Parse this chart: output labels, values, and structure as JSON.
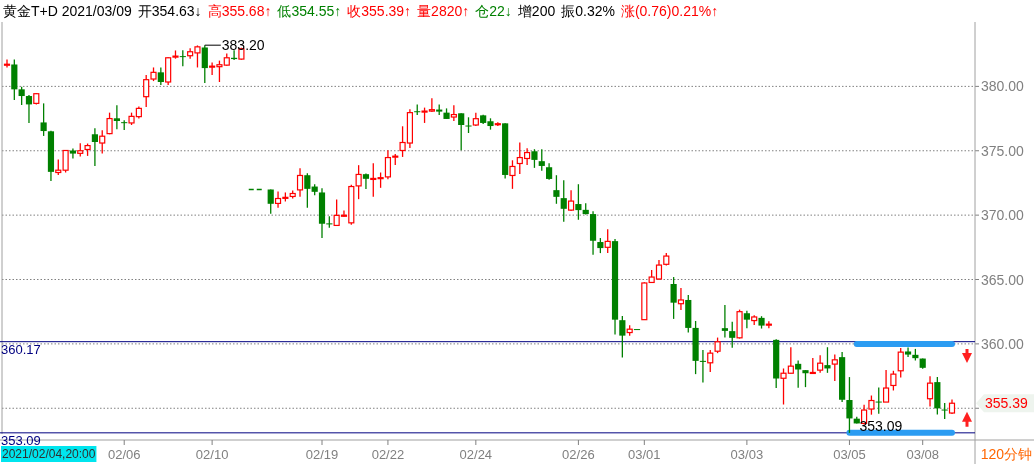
{
  "chart_data": {
    "type": "candlestick",
    "title": "黄金T+D 2021/03/09",
    "categories": [
      null,
      null,
      null,
      null,
      null,
      null,
      null,
      null,
      null,
      null,
      null,
      null,
      null,
      null,
      null,
      null,
      "02/06",
      null,
      null,
      null,
      null,
      null,
      null,
      null,
      null,
      null,
      null,
      null,
      "02/10",
      null,
      null,
      null,
      null,
      null,
      null,
      null,
      null,
      null,
      null,
      null,
      null,
      null,
      null,
      "02/19",
      null,
      null,
      null,
      null,
      null,
      null,
      null,
      null,
      "02/22",
      null,
      null,
      null,
      null,
      null,
      null,
      null,
      null,
      null,
      null,
      null,
      "02/24",
      null,
      null,
      null,
      null,
      null,
      null,
      null,
      null,
      null,
      null,
      null,
      null,
      null,
      "02/26",
      null,
      null,
      null,
      null,
      null,
      null,
      null,
      null,
      "03/01",
      null,
      null,
      null,
      null,
      null,
      null,
      null,
      null,
      null,
      null,
      null,
      null,
      null,
      "03/03",
      null,
      null,
      null,
      null,
      null,
      null,
      null,
      null,
      null,
      null,
      null,
      null,
      null,
      "03/05",
      null,
      null,
      null,
      null,
      null,
      null,
      null,
      null,
      null,
      "03/08",
      null,
      null,
      null,
      null
    ],
    "ohlc": [
      [
        381.7,
        382.09,
        381.47,
        381.72
      ],
      [
        381.7,
        382.09,
        378.94,
        379.77
      ],
      [
        379.77,
        379.98,
        378.55,
        379.25
      ],
      [
        379.25,
        379.33,
        377.16,
        378.6
      ],
      [
        378.68,
        379.48,
        378.6,
        379.43
      ],
      [
        377.2,
        378.68,
        376.15,
        376.53
      ],
      [
        376.51,
        376.56,
        372.66,
        373.36
      ],
      [
        373.31,
        374.32,
        373.12,
        373.49
      ],
      [
        373.49,
        375.02,
        373.31,
        375.02
      ],
      [
        375.02,
        375.17,
        374.4,
        374.78
      ],
      [
        374.8,
        375.58,
        374.55,
        375.0
      ],
      [
        375.1,
        375.56,
        374.6,
        375.4
      ],
      [
        376.28,
        376.74,
        373.82,
        375.68
      ],
      [
        375.6,
        376.59,
        374.78,
        376.13
      ],
      [
        376.33,
        377.96,
        376.28,
        377.5
      ],
      [
        377.52,
        378.53,
        376.67,
        377.31
      ],
      [
        377.22,
        377.36,
        376.62,
        377.2
      ],
      [
        377.16,
        377.96,
        377.0,
        377.67
      ],
      [
        377.65,
        378.43,
        377.5,
        378.29
      ],
      [
        379.2,
        380.88,
        378.4,
        380.52
      ],
      [
        380.57,
        381.47,
        380.41,
        381.09
      ],
      [
        381.09,
        381.47,
        380.1,
        380.34
      ],
      [
        380.34,
        382.27,
        380.1,
        382.22
      ],
      [
        382.3,
        382.79,
        382.15,
        382.35
      ],
      [
        382.35,
        382.81,
        381.57,
        382.3
      ],
      [
        382.38,
        382.97,
        382.15,
        382.69
      ],
      [
        382.6,
        383.18,
        381.47,
        383.07
      ],
      [
        383.02,
        383.2,
        380.26,
        381.42
      ],
      [
        381.55,
        381.86,
        380.88,
        381.57
      ],
      [
        381.53,
        382.0,
        380.34,
        381.68
      ],
      [
        381.65,
        382.56,
        381.6,
        382.22
      ],
      [
        382.22,
        382.81,
        382.04,
        382.12
      ],
      [
        382.12,
        383.0,
        382.07,
        382.92
      ],
      null,
      null,
      null,
      [
        371.99,
        371.99,
        370.1,
        370.88
      ],
      [
        370.91,
        371.84,
        370.57,
        371.29
      ],
      [
        371.36,
        371.76,
        371.06,
        371.38
      ],
      [
        371.45,
        371.91,
        371.29,
        371.68
      ],
      [
        371.96,
        373.64,
        371.42,
        373.08
      ],
      [
        373.1,
        373.26,
        370.57,
        372.04
      ],
      [
        372.22,
        372.4,
        371.55,
        371.81
      ],
      [
        371.76,
        372.09,
        368.22,
        369.33
      ],
      [
        369.36,
        369.92,
        369.02,
        369.28
      ],
      [
        369.2,
        371.22,
        369.2,
        369.98
      ],
      [
        369.97,
        370.36,
        369.87,
        369.99
      ],
      [
        369.4,
        372.35,
        369.25,
        372.22
      ],
      [
        372.27,
        373.88,
        371.24,
        373.16
      ],
      [
        373.18,
        373.24,
        372.02,
        372.82
      ],
      [
        372.83,
        374.03,
        371.42,
        372.85
      ],
      [
        372.89,
        373.31,
        372.12,
        372.91
      ],
      [
        372.97,
        375.04,
        372.79,
        374.47
      ],
      [
        374.56,
        374.75,
        373.9,
        374.58
      ],
      [
        375.02,
        376.9,
        374.52,
        375.64
      ],
      [
        375.6,
        378.22,
        375.22,
        377.96
      ],
      [
        378.07,
        378.6,
        377.78,
        378.05
      ],
      [
        378.05,
        378.35,
        377.16,
        378.08
      ],
      [
        378.08,
        379.07,
        378.01,
        378.19
      ],
      [
        378.2,
        378.6,
        377.78,
        378.04
      ],
      [
        377.96,
        378.29,
        377.47,
        377.47
      ],
      [
        377.62,
        378.53,
        377.31,
        377.81
      ],
      [
        377.91,
        377.91,
        375.04,
        377.0
      ],
      [
        376.96,
        377.6,
        376.38,
        376.94
      ],
      [
        377.0,
        377.96,
        376.93,
        377.49
      ],
      [
        377.75,
        377.8,
        377.08,
        377.16
      ],
      [
        377.29,
        377.52,
        376.64,
        376.92
      ],
      [
        377.06,
        377.21,
        376.92,
        377.1
      ],
      [
        377.13,
        377.13,
        372.84,
        373.12
      ],
      [
        373.08,
        374.26,
        372.04,
        373.78
      ],
      [
        374.01,
        375.64,
        373.2,
        374.47
      ],
      [
        374.4,
        375.19,
        373.9,
        374.86
      ],
      [
        374.96,
        375.12,
        373.67,
        374.29
      ],
      [
        374.19,
        375.12,
        373.44,
        373.82
      ],
      [
        373.72,
        374.03,
        372.74,
        372.81
      ],
      [
        371.94,
        373.1,
        370.88,
        371.42
      ],
      [
        371.32,
        372.71,
        369.48,
        370.49
      ],
      [
        370.39,
        371.94,
        370.33,
        371.09
      ],
      [
        370.86,
        372.4,
        369.64,
        370.39
      ],
      [
        370.41,
        370.93,
        370.05,
        370.08
      ],
      [
        370.08,
        370.31,
        366.92,
        368.01
      ],
      [
        367.91,
        368.22,
        367.05,
        367.44
      ],
      [
        367.5,
        368.91,
        367.05,
        367.96
      ],
      [
        367.98,
        368.14,
        360.72,
        361.88
      ],
      [
        361.84,
        362.17,
        358.94,
        360.64
      ],
      [
        360.88,
        361.45,
        360.64,
        361.14
      ],
      [
        361.15,
        361.15,
        361.13,
        361.13
      ],
      [
        361.88,
        364.78,
        361.88,
        364.73
      ],
      [
        364.77,
        365.74,
        364.73,
        365.19
      ],
      [
        365.04,
        366.51,
        364.97,
        366.12
      ],
      [
        366.18,
        367.05,
        366.08,
        366.82
      ],
      [
        364.65,
        365.19,
        361.94,
        363.2
      ],
      [
        363.12,
        364.34,
        362.63,
        363.41
      ],
      [
        363.41,
        363.8,
        360.88,
        361.24
      ],
      [
        361.24,
        361.78,
        357.65,
        358.68
      ],
      [
        358.68,
        359.53,
        357.0,
        358.6
      ],
      [
        358.53,
        359.53,
        357.81,
        359.28
      ],
      [
        359.43,
        360.49,
        359.28,
        360.16
      ],
      [
        361.22,
        363.02,
        360.5,
        361.01
      ],
      [
        360.99,
        361.71,
        359.69,
        360.47
      ],
      [
        360.47,
        362.66,
        360.41,
        362.5
      ],
      [
        362.38,
        362.58,
        361.22,
        361.88
      ],
      [
        361.81,
        362.22,
        361.47,
        362.09
      ],
      [
        362.02,
        362.15,
        361.19,
        361.42
      ],
      [
        361.5,
        361.76,
        361.22,
        361.53
      ],
      [
        360.31,
        360.36,
        356.57,
        357.31
      ],
      [
        357.33,
        358.09,
        355.29,
        357.72
      ],
      [
        357.72,
        359.74,
        357.72,
        358.27
      ],
      [
        358.45,
        358.71,
        356.59,
        358.01
      ],
      [
        357.96,
        357.96,
        356.64,
        357.72
      ],
      [
        357.75,
        358.91,
        357.72,
        357.78
      ],
      [
        357.96,
        359.12,
        357.75,
        358.5
      ],
      [
        358.35,
        359.74,
        357.75,
        358.09
      ],
      [
        358.43,
        359.17,
        357.11,
        358.76
      ],
      [
        358.97,
        359.36,
        355.48,
        355.66
      ],
      [
        355.64,
        357.42,
        353.09,
        354.21
      ],
      [
        354.19,
        354.34,
        353.82,
        353.82
      ],
      [
        353.82,
        355.27,
        353.74,
        354.86
      ],
      [
        354.94,
        355.99,
        354.5,
        355.6
      ],
      [
        355.52,
        356.61,
        354.57,
        355.45
      ],
      [
        355.48,
        357.98,
        355.48,
        356.57
      ],
      [
        356.77,
        357.91,
        356.38,
        357.65
      ],
      [
        357.91,
        359.67,
        357.39,
        359.36
      ],
      [
        359.41,
        359.72,
        358.99,
        359.17
      ],
      [
        359.15,
        359.61,
        358.71,
        358.89
      ],
      [
        358.86,
        358.86,
        358.06,
        358.14
      ],
      [
        355.74,
        357.49,
        355.14,
        356.95
      ],
      [
        357.03,
        357.42,
        354.52,
        354.99
      ],
      [
        354.9,
        355.4,
        354.16,
        354.83
      ],
      [
        354.63,
        355.68,
        354.55,
        355.39
      ]
    ],
    "series": [
      {
        "type": "line",
        "color": "#008000",
        "line_style": "dashed",
        "values": [
          null,
          null,
          null,
          null,
          null,
          null,
          null,
          null,
          null,
          null,
          null,
          null,
          null,
          null,
          null,
          null,
          null,
          null,
          null,
          null,
          null,
          null,
          null,
          null,
          null,
          null,
          null,
          null,
          null,
          null,
          null,
          null,
          null,
          372.0,
          372.0,
          372.0,
          null,
          null,
          null,
          null,
          null,
          null,
          null,
          null,
          null,
          null,
          null,
          null,
          null,
          null,
          null,
          null,
          null,
          null,
          null,
          null,
          null,
          null,
          null,
          null,
          null,
          null,
          null,
          null,
          null,
          null,
          null,
          null,
          null,
          null,
          null,
          null,
          null,
          null,
          null,
          null,
          null,
          null,
          null,
          null,
          null,
          null,
          null,
          null,
          null,
          null,
          null,
          null,
          null,
          null,
          null,
          null,
          null,
          null,
          null,
          null,
          null,
          null,
          null,
          null,
          null,
          null,
          null,
          null,
          null,
          null,
          null,
          null,
          null,
          null,
          null,
          null,
          null,
          null,
          null,
          null,
          null,
          null,
          null,
          null,
          null,
          null,
          null,
          null,
          null,
          null,
          null,
          null,
          null,
          null
        ]
      },
      {
        "type": "line",
        "color": "#2b9cf2",
        "line_style": "solid",
        "values": [
          null,
          null,
          null,
          null,
          null,
          null,
          null,
          null,
          null,
          null,
          null,
          null,
          null,
          null,
          null,
          null,
          null,
          null,
          null,
          null,
          null,
          null,
          null,
          null,
          null,
          null,
          null,
          null,
          null,
          null,
          null,
          null,
          null,
          null,
          null,
          null,
          null,
          null,
          null,
          null,
          null,
          null,
          null,
          null,
          null,
          null,
          null,
          null,
          null,
          null,
          null,
          null,
          null,
          null,
          null,
          null,
          null,
          null,
          null,
          null,
          null,
          null,
          null,
          null,
          null,
          null,
          null,
          null,
          null,
          null,
          null,
          null,
          null,
          null,
          null,
          null,
          null,
          null,
          null,
          null,
          null,
          null,
          null,
          null,
          null,
          null,
          null,
          null,
          null,
          null,
          null,
          null,
          null,
          null,
          null,
          null,
          null,
          null,
          null,
          null,
          null,
          null,
          null,
          null,
          null,
          null,
          null,
          null,
          null,
          null,
          null,
          null,
          null,
          null,
          null,
          null,
          360.0,
          360.0,
          360.0,
          360.0,
          360.0,
          360.0,
          360.0,
          360.0,
          360.0,
          360.0,
          360.0,
          360.0,
          360.0,
          360.0
        ]
      },
      {
        "type": "line",
        "color": "#2b9cf2",
        "line_style": "solid",
        "values": [
          null,
          null,
          null,
          null,
          null,
          null,
          null,
          null,
          null,
          null,
          null,
          null,
          null,
          null,
          null,
          null,
          null,
          null,
          null,
          null,
          null,
          null,
          null,
          null,
          null,
          null,
          null,
          null,
          null,
          null,
          null,
          null,
          null,
          null,
          null,
          null,
          null,
          null,
          null,
          null,
          null,
          null,
          null,
          null,
          null,
          null,
          null,
          null,
          null,
          null,
          null,
          null,
          null,
          null,
          null,
          null,
          null,
          null,
          null,
          null,
          null,
          null,
          null,
          null,
          null,
          null,
          null,
          null,
          null,
          null,
          null,
          null,
          null,
          null,
          null,
          null,
          null,
          null,
          null,
          null,
          null,
          null,
          null,
          null,
          null,
          null,
          null,
          null,
          null,
          null,
          null,
          null,
          null,
          null,
          null,
          null,
          null,
          null,
          null,
          null,
          null,
          null,
          null,
          null,
          null,
          null,
          null,
          null,
          null,
          null,
          null,
          null,
          null,
          null,
          null,
          353.09,
          353.09,
          353.09,
          353.09,
          353.09,
          353.09,
          353.09,
          353.09,
          353.09,
          353.09,
          353.09,
          353.09,
          353.09,
          353.09,
          353.09
        ]
      }
    ],
    "ylim": [
      353.0,
      385.0
    ],
    "yticks": [
      {
        "value": 355,
        "label": null
      },
      {
        "value": 360,
        "label": "360.00"
      },
      {
        "value": 365,
        "label": "365.00"
      },
      {
        "value": 370,
        "label": "370.00"
      },
      {
        "value": 375,
        "label": "375.00"
      },
      {
        "value": 380,
        "label": "380.00"
      }
    ],
    "grid": "y",
    "ref_lines": [
      {
        "axis": "y",
        "value": 360.17,
        "label": "360.17",
        "color": "#000080"
      },
      {
        "axis": "y",
        "value": 353.09,
        "label": "353.09",
        "color": "#000080"
      }
    ],
    "annotations": [
      "开354.63↓",
      "高355.68↑",
      "低354.55↑",
      "收355.39↑",
      "量2820↑",
      "仓22↓",
      "增200",
      "振0.32%",
      "涨(0.76)0.21%↑",
      "120分钟",
      {
        "text": "383.20",
        "y": 383.2
      },
      {
        "text": "353.09",
        "y": 353.09
      },
      "355.39",
      "2021/02/04,20:00"
    ]
  }
}
